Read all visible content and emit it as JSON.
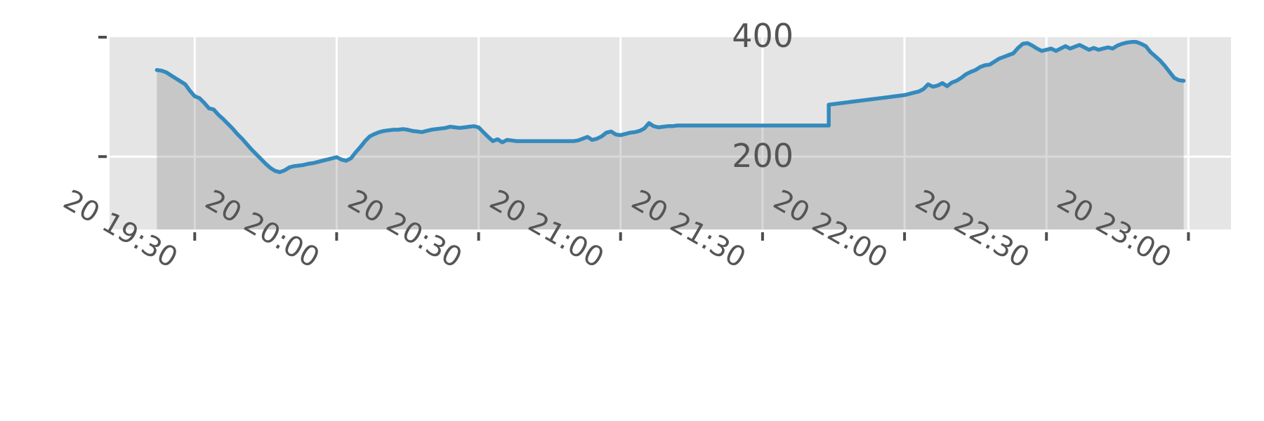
{
  "figure": {
    "background": "#ffffff",
    "plot_bg": "#e5e5e5",
    "grid_color": "#ffffff",
    "tick_color": "#4d4d4d",
    "label_color": "#555555"
  },
  "chart_data": {
    "type": "area",
    "grid": true,
    "x_axis": {
      "tick_labels": [
        "20 19:30",
        "20 20:00",
        "20 20:30",
        "20 21:00",
        "20 21:30",
        "20 22:00",
        "20 22:30",
        "20 23:00"
      ],
      "tick_times": [
        "19:30",
        "20:00",
        "20:30",
        "21:00",
        "21:30",
        "22:00",
        "22:30",
        "23:00"
      ],
      "range": [
        "19:12",
        "23:09"
      ],
      "label_rotation_deg": 30
    },
    "y_axis": {
      "tick_labels": [
        "400",
        "200"
      ],
      "tick_values": [
        400,
        200
      ],
      "range": [
        78,
        400
      ]
    },
    "series": [
      {
        "color": "#348abd",
        "fill_color": "rgba(128,128,128,0.30)",
        "points": [
          [
            "19:22",
            345
          ],
          [
            "19:23",
            344
          ],
          [
            "19:24",
            341
          ],
          [
            "19:25",
            336
          ],
          [
            "19:26",
            331
          ],
          [
            "19:27",
            326
          ],
          [
            "19:28",
            321
          ],
          [
            "19:29",
            310
          ],
          [
            "19:30",
            301
          ],
          [
            "19:31",
            298
          ],
          [
            "19:32",
            290
          ],
          [
            "19:33",
            281
          ],
          [
            "19:34",
            279
          ],
          [
            "19:35",
            270
          ],
          [
            "19:36",
            263
          ],
          [
            "19:37",
            255
          ],
          [
            "19:38",
            247
          ],
          [
            "19:39",
            238
          ],
          [
            "19:40",
            230
          ],
          [
            "19:41",
            221
          ],
          [
            "19:42",
            212
          ],
          [
            "19:43",
            204
          ],
          [
            "19:44",
            196
          ],
          [
            "19:45",
            188
          ],
          [
            "19:46",
            181
          ],
          [
            "19:47",
            176
          ],
          [
            "19:48",
            174
          ],
          [
            "19:49",
            177
          ],
          [
            "19:50",
            182
          ],
          [
            "19:51",
            184
          ],
          [
            "19:52",
            185
          ],
          [
            "19:53",
            186
          ],
          [
            "19:54",
            188
          ],
          [
            "19:55",
            189
          ],
          [
            "19:56",
            191
          ],
          [
            "19:57",
            193
          ],
          [
            "19:58",
            195
          ],
          [
            "19:59",
            197
          ],
          [
            "20:00",
            199
          ],
          [
            "20:01",
            195
          ],
          [
            "20:02",
            193
          ],
          [
            "20:03",
            197
          ],
          [
            "20:04",
            207
          ],
          [
            "20:05",
            216
          ],
          [
            "20:06",
            226
          ],
          [
            "20:07",
            234
          ],
          [
            "20:08",
            238
          ],
          [
            "20:09",
            241
          ],
          [
            "20:10",
            243
          ],
          [
            "20:11",
            244
          ],
          [
            "20:12",
            245
          ],
          [
            "20:13",
            245
          ],
          [
            "20:14",
            246
          ],
          [
            "20:15",
            245
          ],
          [
            "20:16",
            243
          ],
          [
            "20:17",
            242
          ],
          [
            "20:18",
            241
          ],
          [
            "20:19",
            243
          ],
          [
            "20:20",
            245
          ],
          [
            "20:21",
            246
          ],
          [
            "20:22",
            247
          ],
          [
            "20:23",
            248
          ],
          [
            "20:24",
            250
          ],
          [
            "20:25",
            249
          ],
          [
            "20:26",
            248
          ],
          [
            "20:27",
            249
          ],
          [
            "20:28",
            250
          ],
          [
            "20:29",
            251
          ],
          [
            "20:30",
            249
          ],
          [
            "20:31",
            241
          ],
          [
            "20:32",
            233
          ],
          [
            "20:33",
            226
          ],
          [
            "20:34",
            229
          ],
          [
            "20:35",
            224
          ],
          [
            "20:36",
            228
          ],
          [
            "20:37",
            227
          ],
          [
            "20:38",
            226
          ],
          [
            "20:40",
            226
          ],
          [
            "20:45",
            226
          ],
          [
            "20:50",
            226
          ],
          [
            "20:51",
            227
          ],
          [
            "20:52",
            230
          ],
          [
            "20:53",
            233
          ],
          [
            "20:54",
            228
          ],
          [
            "20:55",
            230
          ],
          [
            "20:56",
            234
          ],
          [
            "20:57",
            240
          ],
          [
            "20:58",
            242
          ],
          [
            "20:59",
            237
          ],
          [
            "21:00",
            236
          ],
          [
            "21:01",
            238
          ],
          [
            "21:02",
            240
          ],
          [
            "21:03",
            241
          ],
          [
            "21:04",
            243
          ],
          [
            "21:05",
            247
          ],
          [
            "21:06",
            256
          ],
          [
            "21:07",
            251
          ],
          [
            "21:08",
            249
          ],
          [
            "21:09",
            250
          ],
          [
            "21:10",
            251
          ],
          [
            "21:11",
            251
          ],
          [
            "21:12",
            252
          ],
          [
            "21:13",
            252
          ],
          [
            "21:14",
            252
          ],
          [
            "21:20",
            252
          ],
          [
            "21:25",
            252
          ],
          [
            "21:30",
            252
          ],
          [
            "21:35",
            252
          ],
          [
            "21:40",
            252
          ],
          [
            "21:44",
            252
          ],
          [
            "21:44",
            287
          ],
          [
            "21:45",
            288
          ],
          [
            "21:46",
            289
          ],
          [
            "21:47",
            290
          ],
          [
            "21:48",
            291
          ],
          [
            "21:49",
            292
          ],
          [
            "21:51",
            294
          ],
          [
            "21:53",
            296
          ],
          [
            "21:55",
            298
          ],
          [
            "21:57",
            300
          ],
          [
            "21:59",
            302
          ],
          [
            "22:00",
            303
          ],
          [
            "22:01",
            305
          ],
          [
            "22:02",
            307
          ],
          [
            "22:03",
            309
          ],
          [
            "22:04",
            313
          ],
          [
            "22:05",
            321
          ],
          [
            "22:06",
            317
          ],
          [
            "22:07",
            319
          ],
          [
            "22:08",
            323
          ],
          [
            "22:09",
            318
          ],
          [
            "22:10",
            324
          ],
          [
            "22:11",
            327
          ],
          [
            "22:12",
            332
          ],
          [
            "22:13",
            338
          ],
          [
            "22:14",
            342
          ],
          [
            "22:15",
            345
          ],
          [
            "22:16",
            350
          ],
          [
            "22:17",
            353
          ],
          [
            "22:18",
            354
          ],
          [
            "22:19",
            359
          ],
          [
            "22:20",
            364
          ],
          [
            "22:21",
            367
          ],
          [
            "22:22",
            370
          ],
          [
            "22:23",
            373
          ],
          [
            "22:24",
            382
          ],
          [
            "22:25",
            389
          ],
          [
            "22:26",
            390
          ],
          [
            "22:27",
            386
          ],
          [
            "22:28",
            381
          ],
          [
            "22:29",
            377
          ],
          [
            "22:30",
            379
          ],
          [
            "22:31",
            381
          ],
          [
            "22:32",
            377
          ],
          [
            "22:33",
            381
          ],
          [
            "22:34",
            385
          ],
          [
            "22:35",
            381
          ],
          [
            "22:36",
            384
          ],
          [
            "22:37",
            387
          ],
          [
            "22:38",
            383
          ],
          [
            "22:39",
            379
          ],
          [
            "22:40",
            382
          ],
          [
            "22:41",
            379
          ],
          [
            "22:42",
            381
          ],
          [
            "22:43",
            383
          ],
          [
            "22:44",
            381
          ],
          [
            "22:45",
            386
          ],
          [
            "22:46",
            389
          ],
          [
            "22:47",
            391
          ],
          [
            "22:48",
            392
          ],
          [
            "22:49",
            392
          ],
          [
            "22:50",
            389
          ],
          [
            "22:51",
            385
          ],
          [
            "22:52",
            375
          ],
          [
            "22:53",
            368
          ],
          [
            "22:54",
            361
          ],
          [
            "22:55",
            352
          ],
          [
            "22:56",
            342
          ],
          [
            "22:57",
            332
          ],
          [
            "22:58",
            328
          ],
          [
            "22:59",
            327
          ]
        ]
      }
    ]
  }
}
